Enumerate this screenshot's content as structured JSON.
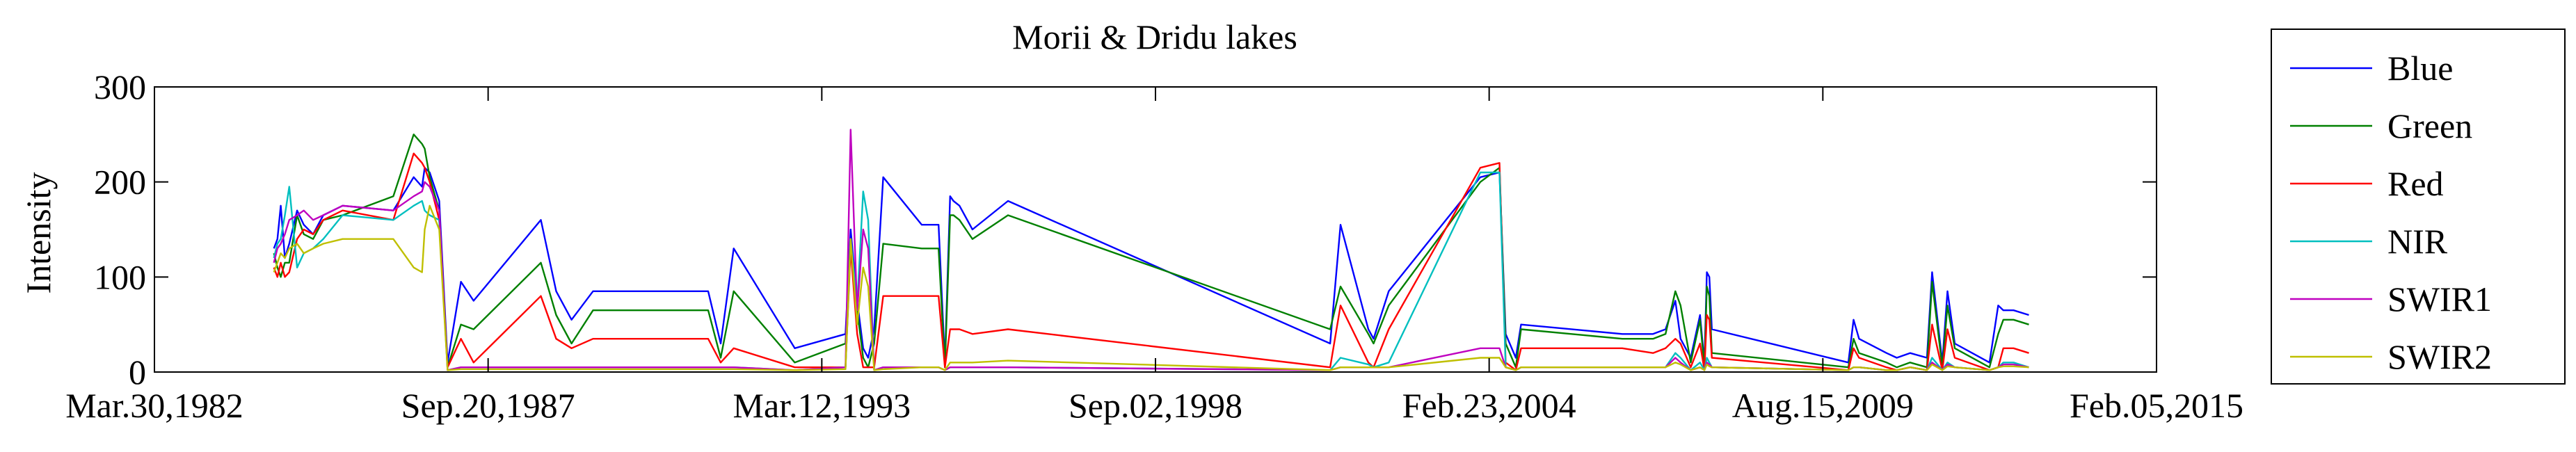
{
  "chart_data": {
    "type": "line",
    "title": "Morii & Dridu lakes",
    "xlabel": "",
    "ylabel": "Intensity",
    "ylim": [
      0,
      300
    ],
    "xlim": [
      "1982-03-30",
      "2015-02-05"
    ],
    "x_ticks": [
      "Mar.30,1982",
      "Sep.20,1987",
      "Mar.12,1993",
      "Sep.02,1998",
      "Feb.23,2004",
      "Aug.15,2009",
      "Feb.05,2015"
    ],
    "y_ticks": [
      "0",
      "100",
      "200",
      "300"
    ],
    "grid": false,
    "legend_position": "outside-right",
    "x": [
      "1984-03-15",
      "1984-04-05",
      "1984-04-25",
      "1984-05-20",
      "1984-06-15",
      "1984-08-01",
      "1984-09-10",
      "1984-11-05",
      "1985-01-05",
      "1985-05-01",
      "1986-03-01",
      "1986-07-01",
      "1986-08-20",
      "1986-09-05",
      "1986-10-05",
      "1986-12-01",
      "1987-01-20",
      "1987-04-10",
      "1987-06-25",
      "1988-08-01",
      "1988-11-01",
      "1989-02-01",
      "1989-06-10",
      "1989-08-01",
      "1991-05-01",
      "1991-07-15",
      "1991-10-01",
      "1992-10-01",
      "1993-08-01",
      "1993-09-01",
      "1993-10-10",
      "1993-11-15",
      "1993-12-15",
      "1994-01-20",
      "1994-03-15",
      "1994-11-01",
      "1995-02-10",
      "1995-03-20",
      "1995-04-20",
      "1995-05-10",
      "1995-06-15",
      "1995-09-01",
      "1996-04-01",
      "2001-07-15",
      "2001-09-15",
      "2002-03-01",
      "2002-04-01",
      "2002-07-01",
      "2004-01-01",
      "2004-04-25",
      "2004-06-01",
      "2004-08-01",
      "2004-09-01",
      "2006-05-01",
      "2006-11-01",
      "2007-01-15",
      "2007-03-15",
      "2007-04-15",
      "2007-06-15",
      "2007-08-10",
      "2007-09-05",
      "2007-09-20",
      "2007-10-05",
      "2007-10-20",
      "2010-01-15",
      "2010-02-15",
      "2010-03-20",
      "2010-09-01",
      "2010-11-01",
      "2011-01-20",
      "2011-05-01",
      "2011-06-01",
      "2011-08-01",
      "2011-09-01",
      "2011-10-15",
      "2012-05-10",
      "2012-07-01",
      "2012-08-01",
      "2012-10-01",
      "2013-01-01"
    ],
    "series": [
      {
        "name": "Blue",
        "color": "#0000ff",
        "values": [
          130,
          140,
          175,
          120,
          135,
          170,
          155,
          145,
          165,
          175,
          170,
          205,
          195,
          215,
          210,
          180,
          10,
          95,
          75,
          160,
          85,
          55,
          85,
          85,
          85,
          30,
          130,
          25,
          40,
          150,
          75,
          25,
          15,
          45,
          205,
          155,
          155,
          10,
          185,
          180,
          175,
          150,
          180,
          30,
          155,
          45,
          35,
          85,
          205,
          210,
          40,
          15,
          50,
          40,
          40,
          45,
          75,
          35,
          15,
          60,
          10,
          105,
          100,
          45,
          10,
          55,
          35,
          20,
          15,
          20,
          15,
          105,
          10,
          85,
          30,
          10,
          70,
          65,
          65,
          60
        ]
      },
      {
        "name": "Green",
        "color": "#008000",
        "values": [
          125,
          110,
          100,
          115,
          115,
          165,
          145,
          140,
          160,
          165,
          185,
          250,
          240,
          235,
          205,
          170,
          5,
          50,
          45,
          115,
          60,
          30,
          65,
          65,
          65,
          15,
          85,
          10,
          30,
          140,
          65,
          15,
          5,
          30,
          135,
          130,
          130,
          5,
          165,
          165,
          160,
          140,
          165,
          45,
          90,
          40,
          30,
          70,
          200,
          215,
          30,
          5,
          45,
          35,
          35,
          40,
          85,
          70,
          10,
          55,
          5,
          90,
          80,
          20,
          5,
          35,
          20,
          10,
          5,
          10,
          5,
          95,
          5,
          70,
          25,
          5,
          40,
          55,
          55,
          50
        ]
      },
      {
        "name": "Red",
        "color": "#ff0000",
        "values": [
          110,
          100,
          115,
          100,
          105,
          140,
          150,
          145,
          160,
          170,
          160,
          230,
          220,
          215,
          200,
          160,
          5,
          35,
          10,
          80,
          35,
          25,
          35,
          35,
          35,
          10,
          25,
          5,
          5,
          130,
          40,
          5,
          5,
          5,
          80,
          80,
          80,
          5,
          45,
          45,
          45,
          40,
          45,
          5,
          70,
          10,
          5,
          45,
          215,
          220,
          10,
          2,
          25,
          25,
          20,
          25,
          35,
          30,
          5,
          30,
          2,
          60,
          55,
          15,
          2,
          25,
          15,
          5,
          2,
          5,
          2,
          50,
          2,
          45,
          15,
          2,
          5,
          25,
          25,
          20
        ]
      },
      {
        "name": "NIR",
        "color": "#00bfbf",
        "values": [
          120,
          135,
          140,
          165,
          195,
          110,
          125,
          130,
          140,
          165,
          160,
          175,
          180,
          170,
          165,
          160,
          2,
          5,
          5,
          5,
          5,
          5,
          5,
          5,
          5,
          5,
          5,
          2,
          5,
          140,
          70,
          190,
          160,
          2,
          5,
          5,
          5,
          2,
          5,
          5,
          5,
          5,
          5,
          2,
          15,
          8,
          5,
          10,
          210,
          210,
          5,
          2,
          5,
          5,
          5,
          5,
          20,
          15,
          2,
          10,
          2,
          15,
          10,
          5,
          2,
          5,
          5,
          2,
          2,
          5,
          2,
          15,
          2,
          10,
          5,
          2,
          5,
          10,
          10,
          5
        ]
      },
      {
        "name": "SWIR1",
        "color": "#bf00bf",
        "values": [
          115,
          130,
          135,
          145,
          160,
          165,
          170,
          160,
          165,
          175,
          170,
          185,
          190,
          200,
          195,
          170,
          2,
          5,
          5,
          5,
          5,
          5,
          5,
          5,
          5,
          5,
          5,
          2,
          5,
          255,
          65,
          150,
          130,
          2,
          5,
          5,
          5,
          2,
          5,
          5,
          5,
          5,
          5,
          2,
          5,
          5,
          5,
          5,
          25,
          25,
          5,
          2,
          5,
          5,
          5,
          5,
          15,
          10,
          2,
          5,
          2,
          10,
          8,
          5,
          2,
          5,
          5,
          2,
          2,
          5,
          2,
          10,
          2,
          8,
          5,
          2,
          5,
          8,
          8,
          5
        ]
      },
      {
        "name": "SWIR2",
        "color": "#bfbf00",
        "values": [
          105,
          115,
          125,
          120,
          130,
          135,
          125,
          130,
          135,
          140,
          140,
          110,
          105,
          150,
          175,
          150,
          2,
          3,
          3,
          3,
          3,
          3,
          3,
          3,
          3,
          3,
          3,
          2,
          3,
          140,
          50,
          110,
          90,
          2,
          3,
          5,
          5,
          2,
          10,
          10,
          10,
          10,
          12,
          2,
          5,
          5,
          5,
          5,
          15,
          15,
          5,
          2,
          5,
          5,
          5,
          5,
          10,
          8,
          2,
          5,
          2,
          8,
          6,
          5,
          2,
          5,
          5,
          2,
          2,
          5,
          2,
          8,
          2,
          6,
          5,
          2,
          5,
          6,
          6,
          5
        ]
      }
    ]
  }
}
